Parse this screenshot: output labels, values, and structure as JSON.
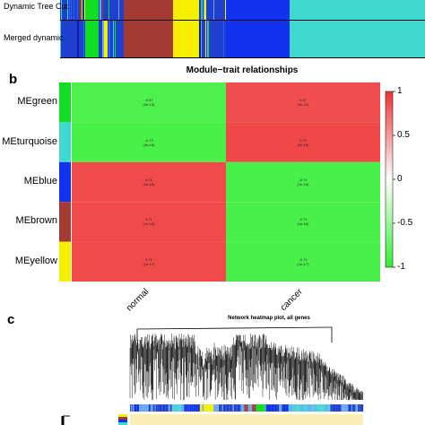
{
  "panel_a": {
    "labels": [
      "Dynamic Tree Cut",
      "Merged dynamic"
    ],
    "blocks": [
      {
        "color": "#1f3fcf",
        "share": 0.07,
        "striped": true
      },
      {
        "color": "#11dd22",
        "share": 0.035,
        "striped": false
      },
      {
        "color": "#1f3fcf",
        "share": 0.07,
        "striped": true
      },
      {
        "color": "#a33a33",
        "share": 0.135,
        "striped": false
      },
      {
        "color": "#f5f000",
        "share": 0.07,
        "striped": false
      },
      {
        "color": "#1f3fcf",
        "share": 0.075,
        "striped": true
      },
      {
        "color": "#1133ee",
        "share": 0.175,
        "striped": false
      },
      {
        "color": "#3fd9d0",
        "share": 0.37,
        "striped": false
      }
    ]
  },
  "panel_b": {
    "label": "b",
    "chart_data": {
      "type": "heatmap",
      "title": "Module−trait relationships",
      "rows": [
        "MEgreen",
        "MEturquoise",
        "MEblue",
        "MEbrown",
        "MEyellow"
      ],
      "row_colors": [
        "#11dd22",
        "#3fd9d0",
        "#1133ee",
        "#a33a33",
        "#f5f000"
      ],
      "columns": [
        "normal",
        "cancer"
      ],
      "values": [
        [
          -0.67,
          0.67
        ],
        [
          -0.73,
          0.73
        ],
        [
          0.71,
          -0.71
        ],
        [
          0.71,
          -0.71
        ],
        [
          0.71,
          -0.71
        ]
      ],
      "cell_text": [
        [
          "-0.67",
          "0.67"
        ],
        [
          "-0.73",
          "0.73"
        ],
        [
          "0.71",
          "-0.71"
        ],
        [
          "0.71",
          "-0.71"
        ],
        [
          "0.71",
          "-0.71"
        ]
      ],
      "cell_pvalues": [
        [
          "(3e-13)",
          "(3e-13)"
        ],
        [
          "(3e-16)",
          "(3e-16)"
        ],
        [
          "(1e-16)",
          "(1e-16)"
        ],
        [
          "(1e-16)",
          "(1e-16)"
        ],
        [
          "(1e-17)",
          "(1e-17)"
        ]
      ],
      "colorbar": {
        "range": [
          -1,
          1
        ],
        "ticks": [
          "1",
          "0.5",
          "0",
          "-0.5",
          "-1"
        ]
      },
      "colors": {
        "high": "#ee3333",
        "mid": "#ffffff",
        "low": "#33ee33"
      }
    }
  },
  "panel_c": {
    "label": "c",
    "title": "Network heatmap plot, all genes"
  }
}
